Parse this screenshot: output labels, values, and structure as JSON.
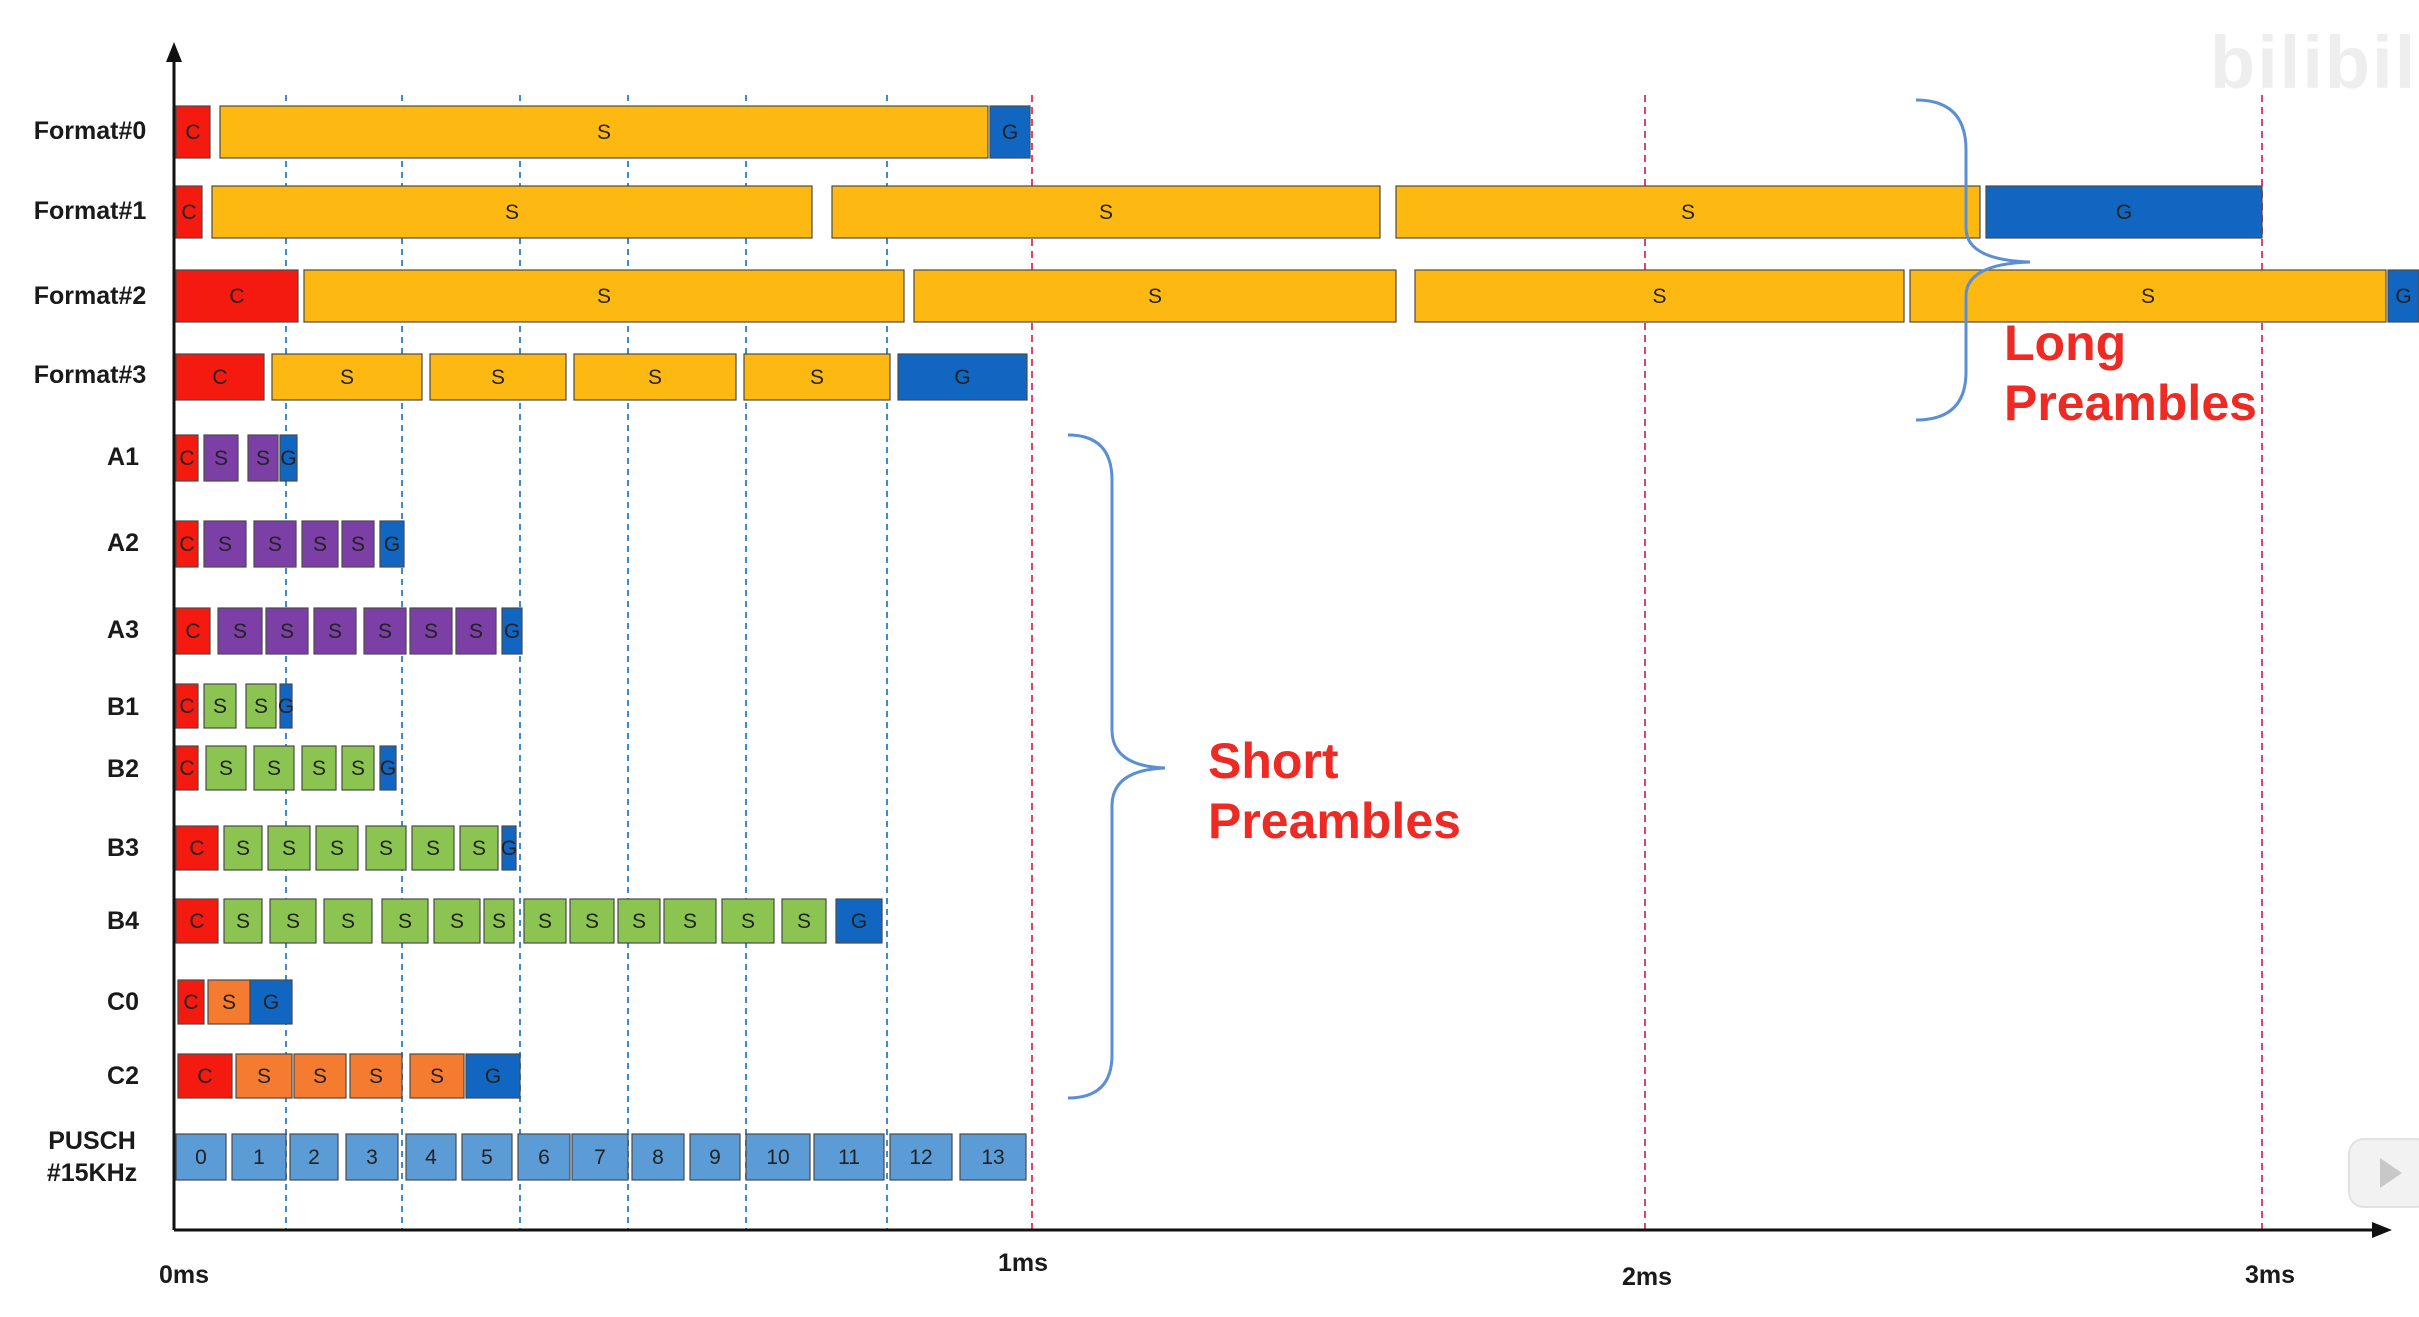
{
  "diagram": {
    "axis_ticks": [
      "0ms",
      "1ms",
      "2ms",
      "3ms"
    ],
    "groups": [
      {
        "id": "long",
        "lines": [
          "Long",
          "Preambles"
        ]
      },
      {
        "id": "short",
        "lines": [
          "Short",
          "Preambles"
        ]
      }
    ],
    "watermark": "bilibili",
    "colors": {
      "C": "#f41a10",
      "G": "#1066c0",
      "S_long": "#fdb811",
      "S_A": "#7b3fa5",
      "S_B": "#8cc451",
      "S_C": "#f47b30",
      "PUSCH": "#5b9bd6",
      "ms_grid": "#e8406a",
      "symbol_grid": "#3c8ad0",
      "group_label": "#ee2a24"
    },
    "rows": [
      {
        "label": "Format#0",
        "segments": [
          {
            "type": "C",
            "text": "C"
          },
          {
            "type": "S",
            "text": "S"
          },
          {
            "type": "G",
            "text": "G"
          }
        ]
      },
      {
        "label": "Format#1",
        "segments": [
          {
            "type": "C",
            "text": "C"
          },
          {
            "type": "S",
            "text": "S"
          },
          {
            "type": "S",
            "text": "S"
          },
          {
            "type": "S",
            "text": "S"
          },
          {
            "type": "G",
            "text": "G"
          }
        ]
      },
      {
        "label": "Format#2",
        "segments": [
          {
            "type": "C",
            "text": "C"
          },
          {
            "type": "S",
            "text": "S"
          },
          {
            "type": "S",
            "text": "S"
          },
          {
            "type": "S",
            "text": "S"
          },
          {
            "type": "S",
            "text": "S"
          },
          {
            "type": "G",
            "text": "G"
          }
        ]
      },
      {
        "label": "Format#3",
        "segments": [
          {
            "type": "C",
            "text": "C"
          },
          {
            "type": "S",
            "text": "S"
          },
          {
            "type": "S",
            "text": "S"
          },
          {
            "type": "S",
            "text": "S"
          },
          {
            "type": "S",
            "text": "S"
          },
          {
            "type": "G",
            "text": "G"
          }
        ]
      },
      {
        "label": "A1",
        "segments": [
          {
            "type": "C",
            "text": "C"
          },
          {
            "type": "S",
            "text": "S"
          },
          {
            "type": "S",
            "text": "S"
          },
          {
            "type": "G",
            "text": "G"
          }
        ]
      },
      {
        "label": "A2",
        "segments": [
          {
            "type": "C",
            "text": "C"
          },
          {
            "type": "S",
            "text": "S"
          },
          {
            "type": "S",
            "text": "S"
          },
          {
            "type": "S",
            "text": "S"
          },
          {
            "type": "S",
            "text": "S"
          },
          {
            "type": "G",
            "text": "G"
          }
        ]
      },
      {
        "label": "A3",
        "segments": [
          {
            "type": "C",
            "text": "C"
          },
          {
            "type": "S",
            "text": "S"
          },
          {
            "type": "S",
            "text": "S"
          },
          {
            "type": "S",
            "text": "S"
          },
          {
            "type": "S",
            "text": "S"
          },
          {
            "type": "S",
            "text": "S"
          },
          {
            "type": "S",
            "text": "S"
          },
          {
            "type": "G",
            "text": "G"
          }
        ]
      },
      {
        "label": "B1",
        "segments": [
          {
            "type": "C",
            "text": "C"
          },
          {
            "type": "S",
            "text": "S"
          },
          {
            "type": "S",
            "text": "S"
          },
          {
            "type": "G",
            "text": "G"
          }
        ]
      },
      {
        "label": "B2",
        "segments": [
          {
            "type": "C",
            "text": "C"
          },
          {
            "type": "S",
            "text": "S"
          },
          {
            "type": "S",
            "text": "S"
          },
          {
            "type": "S",
            "text": "S"
          },
          {
            "type": "S",
            "text": "S"
          },
          {
            "type": "G",
            "text": "G"
          }
        ]
      },
      {
        "label": "B3",
        "segments": [
          {
            "type": "C",
            "text": "C"
          },
          {
            "type": "S",
            "text": "S"
          },
          {
            "type": "S",
            "text": "S"
          },
          {
            "type": "S",
            "text": "S"
          },
          {
            "type": "S",
            "text": "S"
          },
          {
            "type": "S",
            "text": "S"
          },
          {
            "type": "S",
            "text": "S"
          },
          {
            "type": "G",
            "text": "G"
          }
        ]
      },
      {
        "label": "B4",
        "segments": [
          {
            "type": "C",
            "text": "C"
          },
          {
            "type": "S",
            "text": "S"
          },
          {
            "type": "S",
            "text": "S"
          },
          {
            "type": "S",
            "text": "S"
          },
          {
            "type": "S",
            "text": "S"
          },
          {
            "type": "S",
            "text": "S"
          },
          {
            "type": "S",
            "text": "S"
          },
          {
            "type": "S",
            "text": "S"
          },
          {
            "type": "S",
            "text": "S"
          },
          {
            "type": "S",
            "text": "S"
          },
          {
            "type": "S",
            "text": "S"
          },
          {
            "type": "S",
            "text": "S"
          },
          {
            "type": "S",
            "text": "S"
          },
          {
            "type": "G",
            "text": "G"
          }
        ]
      },
      {
        "label": "C0",
        "segments": [
          {
            "type": "C",
            "text": "C"
          },
          {
            "type": "S",
            "text": "S"
          },
          {
            "type": "G",
            "text": "G"
          }
        ]
      },
      {
        "label": "C2",
        "segments": [
          {
            "type": "C",
            "text": "C"
          },
          {
            "type": "S",
            "text": "S"
          },
          {
            "type": "S",
            "text": "S"
          },
          {
            "type": "S",
            "text": "S"
          },
          {
            "type": "S",
            "text": "S"
          },
          {
            "type": "G",
            "text": "G"
          }
        ]
      },
      {
        "label": "PUSCH\n#15KHz",
        "segments": [
          {
            "type": "P",
            "text": "0"
          },
          {
            "type": "P",
            "text": "1"
          },
          {
            "type": "P",
            "text": "2"
          },
          {
            "type": "P",
            "text": "3"
          },
          {
            "type": "P",
            "text": "4"
          },
          {
            "type": "P",
            "text": "5"
          },
          {
            "type": "P",
            "text": "6"
          },
          {
            "type": "P",
            "text": "7"
          },
          {
            "type": "P",
            "text": "8"
          },
          {
            "type": "P",
            "text": "9"
          },
          {
            "type": "P",
            "text": "10"
          },
          {
            "type": "P",
            "text": "11"
          },
          {
            "type": "P",
            "text": "12"
          },
          {
            "type": "P",
            "text": "13"
          }
        ]
      }
    ]
  }
}
